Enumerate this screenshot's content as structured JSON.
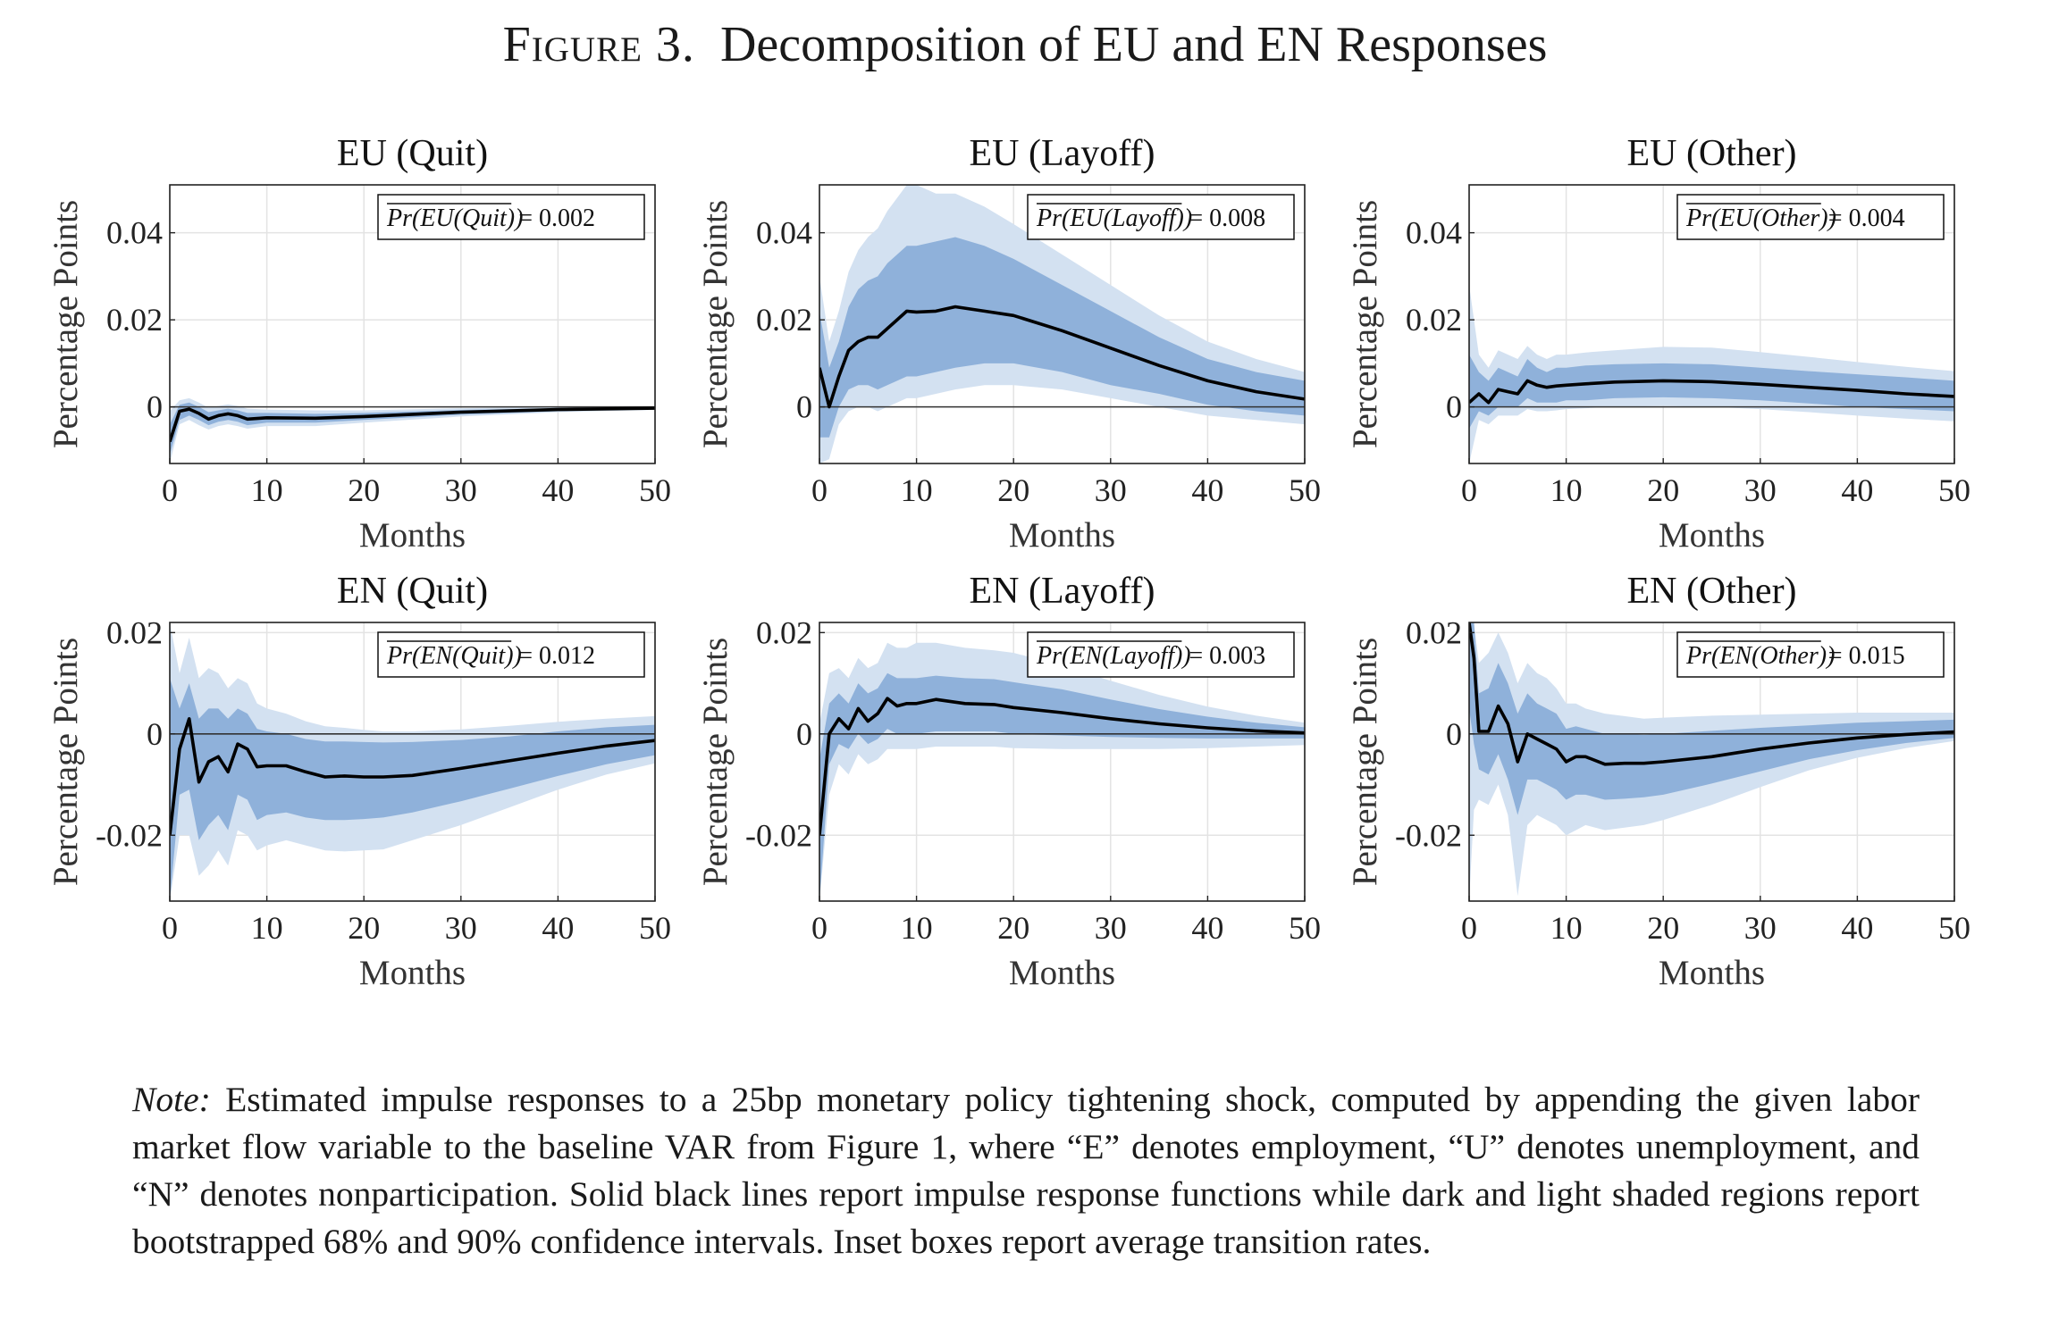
{
  "figure": {
    "label": "Figure 3.",
    "title": "Decomposition of EU and EN Responses"
  },
  "note": {
    "label": "Note:",
    "text": "Estimated impulse responses to a 25bp monetary policy tightening shock, computed by appending the given labor market flow variable to the baseline VAR from Figure 1, where “E” denotes employment, “U” denotes unemployment, and “N” denotes nonparticipation. Solid black lines report impulse response functions while dark and light shaded regions report bootstrapped 68% and 90% confidence intervals. Inset boxes report average transition rates."
  },
  "colors": {
    "band90": "#d3e1f1",
    "band68": "#8fb1da",
    "line": "#000000",
    "zero": "#333333",
    "grid": "#e3e3e3",
    "axis": "#222222"
  },
  "chart_data": [
    {
      "type": "area",
      "title": "EU (Quit)",
      "xlabel": "Months",
      "ylabel": "Percentage Points",
      "xlim": [
        0,
        50
      ],
      "ylim": [
        -0.013,
        0.051
      ],
      "xticks": [
        0,
        10,
        20,
        30,
        40,
        50
      ],
      "yticks": [
        0,
        0.02,
        0.04
      ],
      "ytick_labels": [
        "0",
        "0.02",
        "0.04"
      ],
      "inset": {
        "expr": "Pr(EU(Quit))",
        "value": "= 0.002"
      },
      "grid": true,
      "bands": {
        "x": [
          0,
          1,
          2,
          3,
          4,
          5,
          6,
          7,
          8,
          10,
          15,
          20,
          30,
          40,
          50
        ],
        "irf": [
          -0.008,
          -0.001,
          -0.0005,
          -0.0015,
          -0.0028,
          -0.002,
          -0.0016,
          -0.002,
          -0.0028,
          -0.0025,
          -0.0026,
          -0.0022,
          -0.0012,
          -0.0006,
          -0.0003
        ],
        "lo68": [
          -0.011,
          -0.003,
          -0.002,
          -0.003,
          -0.0042,
          -0.0034,
          -0.003,
          -0.0034,
          -0.0042,
          -0.0036,
          -0.0036,
          -0.003,
          -0.0018,
          -0.001,
          -0.0005
        ],
        "hi68": [
          -0.004,
          0.0005,
          0.001,
          0.0,
          -0.0012,
          -0.0008,
          -0.0004,
          -0.0008,
          -0.0014,
          -0.0014,
          -0.0016,
          -0.0014,
          -0.0007,
          -0.0003,
          -0.0001
        ],
        "lo90": [
          -0.013,
          -0.004,
          -0.003,
          -0.0042,
          -0.0052,
          -0.0044,
          -0.004,
          -0.0044,
          -0.005,
          -0.0044,
          -0.0044,
          -0.0036,
          -0.0022,
          -0.0012,
          -0.0007
        ],
        "hi90": [
          -0.001,
          0.0015,
          0.002,
          0.001,
          -0.0002,
          0.0002,
          0.0006,
          0.0002,
          -0.0004,
          -0.0006,
          -0.0008,
          -0.0008,
          -0.0003,
          0.0,
          0.0001
        ]
      }
    },
    {
      "type": "area",
      "title": "EU (Layoff)",
      "xlabel": "Months",
      "ylabel": "Percentage Points",
      "xlim": [
        0,
        50
      ],
      "ylim": [
        -0.013,
        0.051
      ],
      "xticks": [
        0,
        10,
        20,
        30,
        40,
        50
      ],
      "yticks": [
        0,
        0.02,
        0.04
      ],
      "ytick_labels": [
        "0",
        "0.02",
        "0.04"
      ],
      "inset": {
        "expr": "Pr(EU(Layoff))",
        "value": "= 0.008"
      },
      "grid": true,
      "bands": {
        "x": [
          0,
          1,
          2,
          3,
          4,
          5,
          6,
          7,
          8,
          9,
          10,
          12,
          14,
          17,
          20,
          25,
          30,
          35,
          40,
          45,
          50
        ],
        "irf": [
          0.009,
          0.0,
          0.007,
          0.013,
          0.015,
          0.016,
          0.016,
          0.018,
          0.02,
          0.022,
          0.0218,
          0.022,
          0.023,
          0.022,
          0.021,
          0.0175,
          0.0135,
          0.0095,
          0.006,
          0.0035,
          0.0018
        ],
        "lo68": [
          -0.007,
          -0.007,
          0.0,
          0.004,
          0.005,
          0.005,
          0.004,
          0.005,
          0.006,
          0.007,
          0.007,
          0.008,
          0.009,
          0.01,
          0.01,
          0.008,
          0.005,
          0.003,
          0.0005,
          -0.001,
          -0.002
        ],
        "hi68": [
          0.022,
          0.009,
          0.015,
          0.023,
          0.027,
          0.029,
          0.03,
          0.033,
          0.035,
          0.037,
          0.037,
          0.038,
          0.039,
          0.037,
          0.034,
          0.028,
          0.022,
          0.016,
          0.011,
          0.008,
          0.006
        ],
        "lo90": [
          -0.013,
          -0.012,
          -0.004,
          -0.001,
          0.0,
          0.0,
          -0.001,
          0.0,
          0.001,
          0.002,
          0.002,
          0.003,
          0.004,
          0.005,
          0.005,
          0.004,
          0.002,
          0.0,
          -0.002,
          -0.003,
          -0.004
        ],
        "hi90": [
          0.03,
          0.015,
          0.022,
          0.031,
          0.036,
          0.039,
          0.041,
          0.045,
          0.048,
          0.051,
          0.051,
          0.049,
          0.049,
          0.046,
          0.042,
          0.035,
          0.028,
          0.021,
          0.015,
          0.011,
          0.008
        ]
      }
    },
    {
      "type": "area",
      "title": "EU (Other)",
      "xlabel": "Months",
      "ylabel": "Percentage Points",
      "xlim": [
        0,
        50
      ],
      "ylim": [
        -0.013,
        0.051
      ],
      "xticks": [
        0,
        10,
        20,
        30,
        40,
        50
      ],
      "yticks": [
        0,
        0.02,
        0.04
      ],
      "ytick_labels": [
        "0",
        "0.02",
        "0.04"
      ],
      "inset": {
        "expr": "Pr(EU(Other))",
        "value": "= 0.004"
      },
      "grid": true,
      "bands": {
        "x": [
          0,
          1,
          2,
          3,
          4,
          5,
          6,
          7,
          8,
          9,
          10,
          12,
          15,
          20,
          25,
          30,
          35,
          40,
          45,
          50
        ],
        "irf": [
          0.001,
          0.003,
          0.001,
          0.004,
          0.0035,
          0.003,
          0.006,
          0.005,
          0.0045,
          0.0048,
          0.005,
          0.0053,
          0.0057,
          0.006,
          0.0058,
          0.0052,
          0.0045,
          0.0038,
          0.003,
          0.0024
        ],
        "lo68": [
          -0.005,
          -0.001,
          -0.002,
          0.0,
          0.0,
          0.0,
          0.002,
          0.001,
          0.001,
          0.001,
          0.0015,
          0.0015,
          0.002,
          0.0022,
          0.002,
          0.0015,
          0.0008,
          0.0,
          -0.0005,
          -0.001
        ],
        "hi68": [
          0.012,
          0.008,
          0.006,
          0.009,
          0.008,
          0.007,
          0.011,
          0.009,
          0.008,
          0.009,
          0.009,
          0.0095,
          0.0098,
          0.01,
          0.0098,
          0.009,
          0.0082,
          0.0075,
          0.0068,
          0.006
        ],
        "lo90": [
          -0.013,
          -0.003,
          -0.004,
          -0.002,
          -0.002,
          -0.002,
          -0.0005,
          -0.001,
          -0.001,
          -0.0008,
          -0.0005,
          -0.0003,
          0.0,
          0.0002,
          0.0,
          -0.0005,
          -0.0012,
          -0.002,
          -0.0027,
          -0.0033
        ],
        "hi90": [
          0.028,
          0.012,
          0.009,
          0.013,
          0.012,
          0.011,
          0.014,
          0.012,
          0.011,
          0.012,
          0.012,
          0.0125,
          0.013,
          0.0138,
          0.0136,
          0.0126,
          0.0115,
          0.0103,
          0.0092,
          0.0082
        ]
      }
    },
    {
      "type": "area",
      "title": "EN (Quit)",
      "xlabel": "Months",
      "ylabel": "Percentage Points",
      "xlim": [
        0,
        50
      ],
      "ylim": [
        -0.033,
        0.022
      ],
      "xticks": [
        0,
        10,
        20,
        30,
        40,
        50
      ],
      "yticks": [
        -0.02,
        0,
        0.02
      ],
      "ytick_labels": [
        "-0.02",
        "0",
        "0.02"
      ],
      "inset": {
        "expr": "Pr(EN(Quit))",
        "value": "= 0.012"
      },
      "grid": true,
      "bands": {
        "x": [
          0,
          1,
          2,
          3,
          4,
          5,
          6,
          7,
          8,
          9,
          10,
          12,
          14,
          16,
          18,
          20,
          22,
          25,
          30,
          35,
          40,
          45,
          50
        ],
        "irf": [
          -0.02,
          -0.003,
          0.003,
          -0.0095,
          -0.0055,
          -0.0045,
          -0.0075,
          -0.002,
          -0.003,
          -0.0065,
          -0.0063,
          -0.0063,
          -0.0075,
          -0.0085,
          -0.0083,
          -0.0085,
          -0.0085,
          -0.0082,
          -0.0068,
          -0.0053,
          -0.0038,
          -0.0024,
          -0.0013
        ],
        "lo68": [
          -0.033,
          -0.012,
          -0.011,
          -0.021,
          -0.018,
          -0.016,
          -0.019,
          -0.012,
          -0.013,
          -0.017,
          -0.016,
          -0.0155,
          -0.0165,
          -0.017,
          -0.017,
          -0.0168,
          -0.0165,
          -0.0155,
          -0.0133,
          -0.0108,
          -0.0083,
          -0.006,
          -0.0042
        ],
        "hi68": [
          0.011,
          0.005,
          0.01,
          0.003,
          0.005,
          0.005,
          0.003,
          0.005,
          0.004,
          0.001,
          0.0005,
          0.0,
          -0.001,
          -0.0015,
          -0.0015,
          -0.0016,
          -0.0017,
          -0.0016,
          -0.0012,
          -0.0005,
          0.0005,
          0.0013,
          0.0018
        ],
        "lo90": [
          -0.033,
          -0.02,
          -0.02,
          -0.028,
          -0.026,
          -0.023,
          -0.026,
          -0.019,
          -0.02,
          -0.023,
          -0.022,
          -0.021,
          -0.022,
          -0.023,
          -0.0232,
          -0.023,
          -0.0228,
          -0.021,
          -0.018,
          -0.0145,
          -0.011,
          -0.008,
          -0.0058
        ],
        "hi90": [
          0.022,
          0.012,
          0.019,
          0.011,
          0.013,
          0.012,
          0.009,
          0.011,
          0.01,
          0.006,
          0.005,
          0.004,
          0.0025,
          0.0015,
          0.0012,
          0.0008,
          0.0005,
          0.0005,
          0.0009,
          0.0016,
          0.0024,
          0.003,
          0.0035
        ]
      }
    },
    {
      "type": "area",
      "title": "EN (Layoff)",
      "xlabel": "Months",
      "ylabel": "Percentage Points",
      "xlim": [
        0,
        50
      ],
      "ylim": [
        -0.033,
        0.022
      ],
      "xticks": [
        0,
        10,
        20,
        30,
        40,
        50
      ],
      "yticks": [
        -0.02,
        0,
        0.02
      ],
      "ytick_labels": [
        "-0.02",
        "0",
        "0.02"
      ],
      "inset": {
        "expr": "Pr(EN(Layoff))",
        "value": "= 0.003"
      },
      "grid": true,
      "bands": {
        "x": [
          0,
          1,
          2,
          3,
          4,
          5,
          6,
          7,
          8,
          9,
          10,
          12,
          15,
          18,
          20,
          25,
          30,
          35,
          40,
          45,
          50
        ],
        "irf": [
          -0.02,
          0.0,
          0.003,
          0.001,
          0.005,
          0.0025,
          0.004,
          0.007,
          0.0055,
          0.006,
          0.006,
          0.0068,
          0.006,
          0.0058,
          0.0052,
          0.0042,
          0.003,
          0.002,
          0.0012,
          0.0006,
          0.0002
        ],
        "lo68": [
          -0.033,
          -0.006,
          -0.002,
          -0.003,
          0.0,
          -0.002,
          -0.001,
          0.001,
          0.0,
          0.0,
          0.0,
          0.0005,
          0.0005,
          0.0005,
          0.0,
          -0.0003,
          -0.0006,
          -0.0008,
          -0.0009,
          -0.0009,
          -0.0009
        ],
        "hi68": [
          -0.005,
          0.006,
          0.008,
          0.006,
          0.01,
          0.008,
          0.009,
          0.012,
          0.011,
          0.011,
          0.011,
          0.0115,
          0.011,
          0.0108,
          0.0102,
          0.0088,
          0.0068,
          0.0049,
          0.0034,
          0.0022,
          0.0013
        ],
        "lo90": [
          -0.033,
          -0.012,
          -0.006,
          -0.008,
          -0.004,
          -0.006,
          -0.005,
          -0.003,
          -0.003,
          -0.003,
          -0.003,
          -0.0025,
          -0.0025,
          -0.0025,
          -0.0028,
          -0.003,
          -0.003,
          -0.003,
          -0.0028,
          -0.0025,
          -0.0022
        ],
        "hi90": [
          0.002,
          0.012,
          0.013,
          0.011,
          0.015,
          0.013,
          0.014,
          0.018,
          0.017,
          0.017,
          0.018,
          0.018,
          0.017,
          0.0165,
          0.016,
          0.0135,
          0.0105,
          0.0077,
          0.0054,
          0.0036,
          0.0022
        ]
      }
    },
    {
      "type": "area",
      "title": "EN (Other)",
      "xlabel": "Months",
      "ylabel": "Percentage Points",
      "xlim": [
        0,
        50
      ],
      "ylim": [
        -0.033,
        0.022
      ],
      "xticks": [
        0,
        10,
        20,
        30,
        40,
        50
      ],
      "yticks": [
        -0.02,
        0,
        0.02
      ],
      "ytick_labels": [
        "-0.02",
        "0",
        "0.02"
      ],
      "inset": {
        "expr": "Pr(EN(Other))",
        "value": "= 0.015"
      },
      "grid": true,
      "bands": {
        "x": [
          0,
          0.5,
          1,
          2,
          3,
          4,
          5,
          6,
          7,
          8,
          9,
          10,
          11,
          12,
          14,
          16,
          18,
          20,
          25,
          30,
          35,
          40,
          45,
          50
        ],
        "irf": [
          0.022,
          0.015,
          0.0005,
          0.0005,
          0.0055,
          0.002,
          -0.0055,
          0.0,
          -0.001,
          -0.002,
          -0.003,
          -0.0055,
          -0.0045,
          -0.0045,
          -0.006,
          -0.0058,
          -0.0058,
          -0.0055,
          -0.0045,
          -0.003,
          -0.0018,
          -0.0008,
          -0.0001,
          0.0004
        ],
        "lo68": [
          0.005,
          -0.002,
          -0.007,
          -0.008,
          -0.004,
          -0.009,
          -0.016,
          -0.009,
          -0.009,
          -0.01,
          -0.011,
          -0.013,
          -0.012,
          -0.012,
          -0.013,
          -0.0128,
          -0.0125,
          -0.012,
          -0.0098,
          -0.0074,
          -0.005,
          -0.0032,
          -0.0018,
          -0.0008
        ],
        "hi68": [
          0.022,
          0.022,
          0.008,
          0.009,
          0.014,
          0.01,
          0.004,
          0.008,
          0.006,
          0.005,
          0.004,
          0.001,
          0.0015,
          0.001,
          0.0,
          0.0,
          -0.0002,
          0.0,
          0.0006,
          0.0012,
          0.0017,
          0.0022,
          0.0025,
          0.0028
        ],
        "lo90": [
          -0.033,
          -0.015,
          -0.013,
          -0.014,
          -0.01,
          -0.016,
          -0.032,
          -0.018,
          -0.016,
          -0.017,
          -0.018,
          -0.02,
          -0.019,
          -0.018,
          -0.019,
          -0.0185,
          -0.018,
          -0.017,
          -0.014,
          -0.0105,
          -0.0072,
          -0.0047,
          -0.0028,
          -0.0014
        ],
        "hi90": [
          0.022,
          0.022,
          0.014,
          0.016,
          0.02,
          0.016,
          0.01,
          0.014,
          0.012,
          0.011,
          0.009,
          0.006,
          0.006,
          0.005,
          0.004,
          0.0035,
          0.003,
          0.0032,
          0.0036,
          0.0038,
          0.004,
          0.0042,
          0.0042,
          0.0042
        ]
      }
    }
  ]
}
